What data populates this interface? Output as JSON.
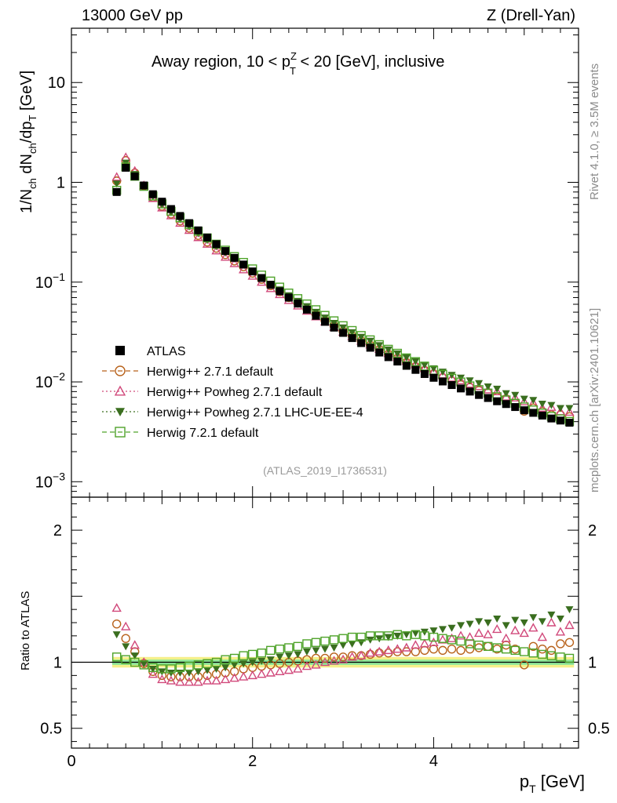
{
  "header": {
    "left": "13000 GeV pp",
    "right": "Z (Drell-Yan)"
  },
  "side_labels": {
    "rivet": "Rivet 4.1.0, ≥ 3.5M events",
    "mcplots": "mcplots.cern.ch [arXiv:2401.10621]"
  },
  "chart_data": {
    "type": "scatter",
    "title": "Away region, 10 < pTZ < 20 [GeV], inclusive",
    "title_parts": {
      "pre": "Away region, 10 < p",
      "sup": "Z",
      "sub": "T",
      "post": " < 20 [GeV], inclusive"
    },
    "watermark": "(ATLAS_2019_I1736531)",
    "xlabel": "pT [GeV]",
    "xlabel_parts": {
      "main": "p",
      "sub": "T",
      "post": " [GeV]"
    },
    "ylabel_top": "1/Nch dNch/dpT [GeV]",
    "ylabel_top_parts": [
      "1/N",
      "ch",
      " dN",
      "ch",
      "/dp",
      "T",
      " [GeV]"
    ],
    "ylabel_bottom": "Ratio to ATLAS",
    "xlim": [
      0,
      5.6
    ],
    "ylim_top": [
      0.0007,
      35
    ],
    "ylim_ratio": [
      0.35,
      2.25
    ],
    "x_ticks": [
      0,
      2,
      4
    ],
    "y_ticks_top": [
      {
        "value": 10,
        "label": "10"
      },
      {
        "value": 1,
        "label": "1"
      },
      {
        "value": 0.1,
        "label": "10",
        "exp": "−1"
      },
      {
        "value": 0.01,
        "label": "10",
        "exp": "−2"
      },
      {
        "value": 0.001,
        "label": "10",
        "exp": "−3"
      }
    ],
    "y_ticks_ratio": [
      {
        "value": 2,
        "label": "2"
      },
      {
        "value": 1,
        "label": "1"
      },
      {
        "value": 0.5,
        "label": "0.5"
      }
    ],
    "x": [
      0.5,
      0.6,
      0.7,
      0.8,
      0.9,
      1.0,
      1.1,
      1.2,
      1.3,
      1.4,
      1.5,
      1.6,
      1.7,
      1.8,
      1.9,
      2.0,
      2.1,
      2.2,
      2.3,
      2.4,
      2.5,
      2.6,
      2.7,
      2.8,
      2.9,
      3.0,
      3.1,
      3.2,
      3.3,
      3.4,
      3.5,
      3.6,
      3.7,
      3.8,
      3.9,
      4.0,
      4.1,
      4.2,
      4.3,
      4.4,
      4.5,
      4.6,
      4.7,
      4.8,
      4.9,
      5.0,
      5.1,
      5.2,
      5.3,
      5.4,
      5.5
    ],
    "atlas": [
      0.8,
      1.4,
      1.15,
      0.93,
      0.76,
      0.64,
      0.54,
      0.46,
      0.39,
      0.33,
      0.28,
      0.24,
      0.205,
      0.175,
      0.15,
      0.128,
      0.11,
      0.094,
      0.081,
      0.07,
      0.061,
      0.053,
      0.046,
      0.04,
      0.035,
      0.031,
      0.0275,
      0.0245,
      0.022,
      0.0197,
      0.0177,
      0.016,
      0.0145,
      0.0132,
      0.012,
      0.011,
      0.0101,
      0.0093,
      0.0086,
      0.008,
      0.0074,
      0.0069,
      0.0064,
      0.006,
      0.0056,
      0.0052,
      0.0049,
      0.0046,
      0.0043,
      0.0041,
      0.0039
    ],
    "atlas_ratio_band": 0.04,
    "series": [
      {
        "name": "ATLAS",
        "legend": "ATLAS",
        "color": "#000000",
        "marker": "filled-square",
        "line": "none",
        "ratio": [
          1,
          1,
          1,
          1,
          1,
          1,
          1,
          1,
          1,
          1,
          1,
          1,
          1,
          1,
          1,
          1,
          1,
          1,
          1,
          1,
          1,
          1,
          1,
          1,
          1,
          1,
          1,
          1,
          1,
          1,
          1,
          1,
          1,
          1,
          1,
          1,
          1,
          1,
          1,
          1,
          1,
          1,
          1,
          1,
          1,
          1,
          1,
          1,
          1,
          1,
          1
        ]
      },
      {
        "name": "herwig-271-default",
        "legend": "Herwig++ 2.7.1 default",
        "color": "#b8621b",
        "marker": "open-circle",
        "line": "dashed",
        "ratio": [
          1.29,
          1.18,
          1.08,
          0.99,
          0.93,
          0.9,
          0.89,
          0.89,
          0.89,
          0.89,
          0.9,
          0.91,
          0.92,
          0.93,
          0.95,
          0.96,
          0.97,
          0.98,
          0.99,
          1.0,
          1.01,
          1.02,
          1.03,
          1.03,
          1.04,
          1.04,
          1.05,
          1.05,
          1.06,
          1.07,
          1.07,
          1.08,
          1.08,
          1.08,
          1.09,
          1.1,
          1.09,
          1.1,
          1.09,
          1.1,
          1.11,
          1.12,
          1.1,
          1.13,
          1.1,
          0.98,
          1.12,
          1.1,
          1.09,
          1.14,
          1.15
        ]
      },
      {
        "name": "herwig-powheg-271-default",
        "legend": "Herwig++ Powheg 2.7.1 default",
        "color": "#d1497b",
        "marker": "open-triangle",
        "line": "dotted",
        "ratio": [
          1.41,
          1.27,
          1.13,
          1.0,
          0.91,
          0.87,
          0.86,
          0.85,
          0.85,
          0.85,
          0.86,
          0.86,
          0.87,
          0.88,
          0.89,
          0.9,
          0.91,
          0.92,
          0.93,
          0.94,
          0.95,
          0.97,
          0.98,
          1.0,
          1.01,
          1.02,
          1.04,
          1.05,
          1.07,
          1.08,
          1.09,
          1.1,
          1.11,
          1.13,
          1.14,
          1.15,
          1.17,
          1.18,
          1.2,
          1.19,
          1.22,
          1.21,
          1.25,
          1.18,
          1.24,
          1.22,
          1.26,
          1.19,
          1.3,
          1.23,
          1.28
        ]
      },
      {
        "name": "herwig-powheg-271-lhc-ue-ee-4",
        "legend": "Herwig++ Powheg 2.7.1 LHC-UE-EE-4",
        "color": "#3a6e1f",
        "marker": "filled-triangle-down",
        "line": "dotted",
        "ratio": [
          1.21,
          1.12,
          1.05,
          0.99,
          0.95,
          0.93,
          0.92,
          0.92,
          0.92,
          0.93,
          0.94,
          0.95,
          0.96,
          0.98,
          0.99,
          1.0,
          1.01,
          1.02,
          1.04,
          1.05,
          1.06,
          1.08,
          1.09,
          1.1,
          1.11,
          1.13,
          1.14,
          1.15,
          1.17,
          1.18,
          1.19,
          1.2,
          1.21,
          1.22,
          1.23,
          1.24,
          1.25,
          1.26,
          1.28,
          1.29,
          1.31,
          1.3,
          1.33,
          1.28,
          1.32,
          1.3,
          1.34,
          1.31,
          1.36,
          1.33,
          1.4
        ]
      },
      {
        "name": "herwig-721-default",
        "legend": "Herwig 7.2.1 default",
        "color": "#4fa32a",
        "marker": "open-square",
        "line": "dashed",
        "ratio": [
          1.04,
          1.02,
          1.0,
          0.98,
          0.96,
          0.95,
          0.95,
          0.96,
          0.97,
          0.98,
          0.99,
          1.0,
          1.02,
          1.03,
          1.05,
          1.06,
          1.07,
          1.09,
          1.1,
          1.11,
          1.12,
          1.14,
          1.15,
          1.16,
          1.17,
          1.18,
          1.19,
          1.19,
          1.2,
          1.2,
          1.2,
          1.21,
          1.2,
          1.21,
          1.2,
          1.19,
          1.18,
          1.17,
          1.16,
          1.14,
          1.13,
          1.12,
          1.11,
          1.1,
          1.09,
          1.08,
          1.07,
          1.06,
          1.05,
          1.04,
          1.03
        ]
      }
    ],
    "legend_position": "left-bottom-of-upper-panel"
  }
}
